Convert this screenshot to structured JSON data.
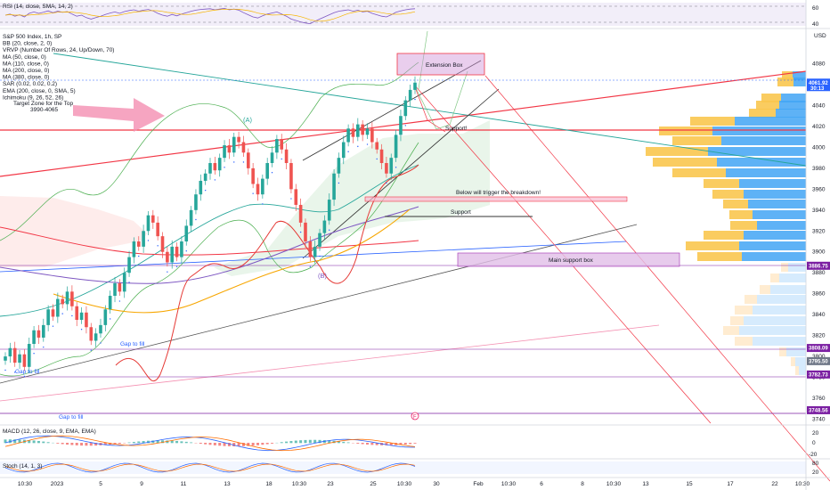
{
  "chart_data": {
    "type": "candlestick",
    "symbol": "S&P 500 Index, 1h, SP",
    "y_range": [
      3737,
      4112
    ],
    "y_ticks": [
      4080,
      4060,
      4040,
      4020,
      4000,
      3980,
      3960,
      3940,
      3920,
      3900,
      3880,
      3860,
      3840,
      3820,
      3800,
      3780,
      3760,
      3740
    ],
    "x_ticks": [
      "10:30",
      "2023",
      "5",
      "9",
      "11",
      "13",
      "18",
      "10:30",
      "23",
      "25",
      "10:30",
      "30",
      "Feb",
      "10:30",
      "6",
      "8",
      "10:30",
      "13",
      "15",
      "17",
      "22",
      "10:30"
    ],
    "indicators_main": [
      "S&P 500 Index, 1h, SP",
      "BB (20, close, 2, 0)",
      "VRVP (Number Of Rows, 24, Up/Down, 70)",
      "MA (50, close, 0)",
      "MA (110, close, 0)",
      "MA (200, close, 0)",
      "MA (380, close, 0)",
      "SAR (0.02, 0.02, 0.2)",
      "EMA (200, close, 0, SMA, 5)",
      "Ichimoku (9, 26, 52, 26)"
    ],
    "price_tags": [
      {
        "value": "4061.92",
        "sub": "30:13",
        "color": "#2962ff"
      },
      {
        "value": "3886.75",
        "color": "#7b1fa2"
      },
      {
        "value": "3808.09",
        "color": "#7b1fa2"
      },
      {
        "value": "3782.73",
        "color": "#7b1fa2"
      },
      {
        "value": "3795.50",
        "color": "#6f7787"
      },
      {
        "value": "3748.56",
        "color": "#7b1fa2"
      }
    ],
    "price_levels": [
      4061.92,
      3886.75,
      3808.09,
      3782.73,
      3795.5,
      3748.56
    ],
    "annotations": [
      "Target Zone for the Top",
      "3990-4065",
      "Extension Box",
      "Below will trigger the breakdown!",
      "Support",
      "Support!",
      "Main support box",
      "Gap to fill",
      "Gap to fill",
      "Gap to fill",
      "(A)",
      "(B)"
    ],
    "closes": [
      3800,
      3808,
      3794,
      3802,
      3790,
      3812,
      3825,
      3818,
      3830,
      3845,
      3838,
      3855,
      3850,
      3862,
      3848,
      3835,
      3842,
      3828,
      3815,
      3822,
      3830,
      3845,
      3858,
      3870,
      3862,
      3880,
      3895,
      3910,
      3905,
      3920,
      3935,
      3928,
      3915,
      3900,
      3890,
      3905,
      3895,
      3910,
      3925,
      3940,
      3955,
      3968,
      3975,
      3985,
      3978,
      3990,
      4002,
      3995,
      4010,
      4005,
      3995,
      3980,
      3965,
      3955,
      3970,
      3985,
      3995,
      4008,
      3998,
      3985,
      3960,
      3945,
      3928,
      3910,
      3895,
      3905,
      3918,
      3930,
      3950,
      3975,
      3990,
      4005,
      4018,
      4010,
      4022,
      4012,
      4018,
      4005,
      3998,
      3985,
      3975,
      3990,
      4012,
      4030,
      4045,
      4055,
      4061.92
    ],
    "rsi": {
      "label": "RSI (14, close, SMA, 14, 2)",
      "ticks": [
        60,
        40
      ],
      "values": [
        55,
        58,
        52,
        56,
        50,
        60,
        64,
        60,
        63,
        67,
        62,
        66,
        63,
        65,
        58,
        52,
        55,
        48,
        44,
        48,
        52,
        57,
        61,
        64,
        60,
        65,
        68,
        70,
        66,
        69,
        71,
        67,
        60,
        55,
        52,
        57,
        53,
        58,
        62,
        66,
        69,
        71,
        72,
        73,
        70,
        72,
        74,
        70,
        72,
        69,
        62,
        56,
        50,
        47,
        53,
        58,
        61,
        64,
        58,
        52,
        44,
        40,
        36,
        33,
        31,
        38,
        44,
        50,
        56,
        62,
        66,
        68,
        70,
        66,
        69,
        64,
        66,
        60,
        56,
        52,
        50,
        56,
        63,
        67,
        70,
        72,
        73
      ]
    },
    "macd": {
      "label": "MACD (12, 26, close, 9, EMA, EMA)",
      "ticks": [
        20,
        0,
        -20
      ]
    },
    "stoch": {
      "label": "Stoch (14, 1, 3)",
      "ticks": [
        80,
        20
      ]
    }
  }
}
